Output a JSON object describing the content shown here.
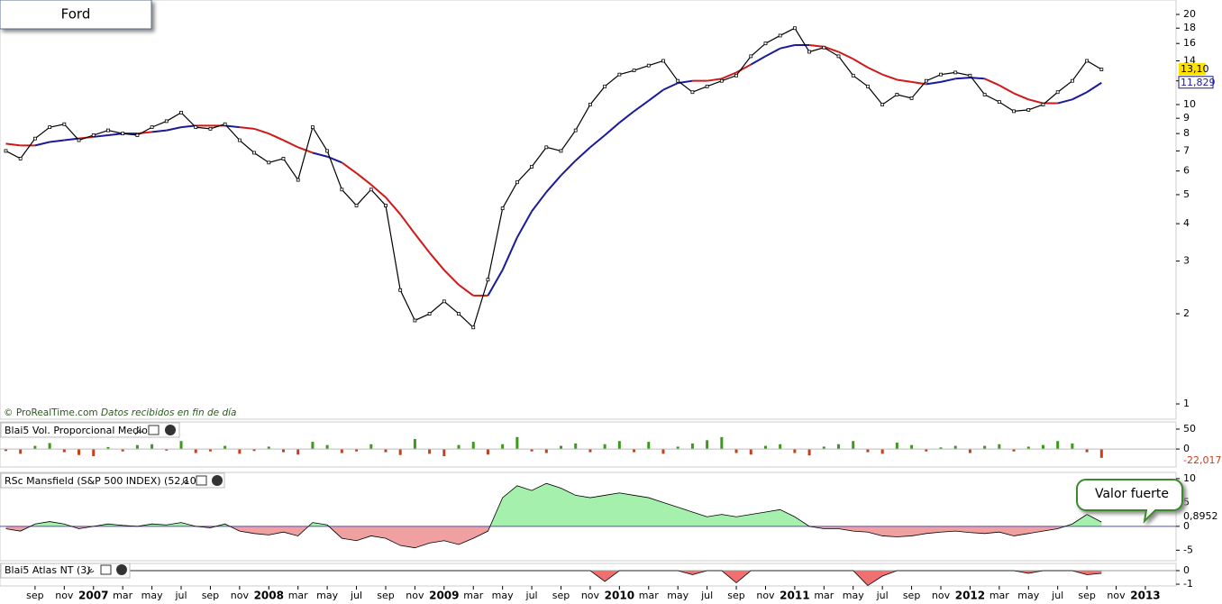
{
  "chart_data": [
    {
      "type": "line",
      "title": "Ford",
      "source": "© ProRealTime.com",
      "source_note": "Datos recibidos en fin de día",
      "x": [
        -6,
        -5,
        -4,
        -3,
        -2,
        -1,
        0,
        1,
        2,
        3,
        4,
        5,
        6,
        7,
        8,
        9,
        10,
        11,
        12,
        13,
        14,
        15,
        16,
        17,
        18,
        19,
        20,
        21,
        22,
        23,
        24,
        25,
        26,
        27,
        28,
        29,
        30,
        31,
        32,
        33,
        34,
        35,
        36,
        37,
        38,
        39,
        40,
        41,
        42,
        43,
        44,
        45,
        46,
        47,
        48,
        49,
        50,
        51,
        52,
        53,
        54,
        55,
        56,
        57,
        58,
        59,
        60,
        61,
        62,
        63,
        64,
        65,
        66,
        67,
        68,
        69
      ],
      "xlim": [
        -6.4,
        74.1
      ],
      "xticks": [
        {
          "value": -4,
          "label": "sep"
        },
        {
          "value": -2,
          "label": "nov"
        },
        {
          "value": 0,
          "label": "2007"
        },
        {
          "value": 2,
          "label": "mar"
        },
        {
          "value": 4,
          "label": "may"
        },
        {
          "value": 6,
          "label": "jul"
        },
        {
          "value": 8,
          "label": "sep"
        },
        {
          "value": 10,
          "label": "nov"
        },
        {
          "value": 12,
          "label": "2008"
        },
        {
          "value": 14,
          "label": "mar"
        },
        {
          "value": 16,
          "label": "may"
        },
        {
          "value": 18,
          "label": "jul"
        },
        {
          "value": 20,
          "label": "sep"
        },
        {
          "value": 22,
          "label": "nov"
        },
        {
          "value": 24,
          "label": "2009"
        },
        {
          "value": 26,
          "label": "mar"
        },
        {
          "value": 28,
          "label": "may"
        },
        {
          "value": 30,
          "label": "jul"
        },
        {
          "value": 32,
          "label": "sep"
        },
        {
          "value": 34,
          "label": "nov"
        },
        {
          "value": 36,
          "label": "2010"
        },
        {
          "value": 38,
          "label": "mar"
        },
        {
          "value": 40,
          "label": "may"
        },
        {
          "value": 42,
          "label": "jul"
        },
        {
          "value": 44,
          "label": "sep"
        },
        {
          "value": 46,
          "label": "nov"
        },
        {
          "value": 48,
          "label": "2011"
        },
        {
          "value": 50,
          "label": "mar"
        },
        {
          "value": 52,
          "label": "may"
        },
        {
          "value": 54,
          "label": "jul"
        },
        {
          "value": 56,
          "label": "sep"
        },
        {
          "value": 58,
          "label": "nov"
        },
        {
          "value": 60,
          "label": "2012"
        },
        {
          "value": 62,
          "label": "mar"
        },
        {
          "value": 64,
          "label": "may"
        },
        {
          "value": 66,
          "label": "jul"
        },
        {
          "value": 68,
          "label": "sep"
        },
        {
          "value": 70,
          "label": "nov"
        },
        {
          "value": 72,
          "label": "2013"
        }
      ],
      "ylim": [
        0.889,
        22.35
      ],
      "log": true,
      "yticks": [
        1,
        2,
        3,
        4,
        5,
        6,
        7,
        8,
        9,
        10,
        12,
        14,
        16,
        18,
        20
      ],
      "series": [
        {
          "color": "#000000",
          "last_value_label": "13,10",
          "label_color": "#ffe100",
          "values": [
            7.0,
            6.6,
            7.7,
            8.4,
            8.6,
            7.6,
            7.9,
            8.2,
            8.0,
            7.9,
            8.4,
            8.8,
            9.4,
            8.4,
            8.3,
            8.6,
            7.6,
            6.9,
            6.4,
            6.6,
            5.6,
            8.4,
            7.0,
            5.2,
            4.6,
            5.2,
            4.6,
            2.4,
            1.9,
            2.0,
            2.2,
            2.0,
            1.8,
            2.6,
            4.5,
            5.5,
            6.2,
            7.2,
            7.0,
            8.2,
            10.0,
            11.5,
            12.6,
            13.0,
            13.5,
            14.0,
            12.0,
            11.0,
            11.5,
            12.0,
            12.5,
            14.5,
            16.0,
            17.0,
            18.0,
            15.0,
            15.5,
            14.5,
            12.5,
            11.5,
            10.0,
            10.8,
            10.5,
            12.0,
            12.6,
            12.8,
            12.5,
            10.8,
            10.2,
            9.5,
            9.6,
            10.0,
            11.0,
            12.0,
            14.0,
            13.1
          ]
        },
        {
          "color": "#1a1a9a",
          "color_below": "#d01818",
          "last_value_label": "11,829",
          "values": [
            7.4,
            7.3,
            7.3,
            7.5,
            7.6,
            7.7,
            7.8,
            7.9,
            8.0,
            8.0,
            8.1,
            8.2,
            8.4,
            8.5,
            8.5,
            8.5,
            8.4,
            8.3,
            8.0,
            7.6,
            7.2,
            6.9,
            6.7,
            6.4,
            5.9,
            5.4,
            4.9,
            4.3,
            3.7,
            3.2,
            2.8,
            2.5,
            2.3,
            2.3,
            2.8,
            3.6,
            4.4,
            5.1,
            5.8,
            6.5,
            7.2,
            7.9,
            8.7,
            9.5,
            10.3,
            11.2,
            11.8,
            12.0,
            12.0,
            12.2,
            12.8,
            13.6,
            14.5,
            15.4,
            15.8,
            15.8,
            15.6,
            15.0,
            14.2,
            13.3,
            12.6,
            12.1,
            11.9,
            11.7,
            11.9,
            12.2,
            12.3,
            12.2,
            11.6,
            10.9,
            10.4,
            10.1,
            10.1,
            10.4,
            11.0,
            11.829
          ]
        }
      ]
    },
    {
      "type": "bar",
      "title": "Blai5 Vol. Proporcional Medio",
      "color": "#3a9a1a",
      "color_negative": "#c8401a",
      "ylim": [
        -45,
        68
      ],
      "yticks": [
        0,
        50
      ],
      "last_value_label": "-22,017",
      "values": [
        -5,
        -12,
        8,
        15,
        -8,
        -15,
        -18,
        5,
        -6,
        10,
        12,
        -4,
        20,
        -10,
        -6,
        8,
        -12,
        -5,
        6,
        -8,
        -14,
        18,
        10,
        -10,
        -6,
        12,
        -8,
        -15,
        25,
        -12,
        -18,
        10,
        18,
        -14,
        12,
        30,
        -6,
        -10,
        8,
        14,
        -8,
        12,
        20,
        -8,
        18,
        -12,
        6,
        14,
        22,
        30,
        -10,
        -14,
        8,
        12,
        -10,
        -16,
        6,
        12,
        20,
        -8,
        -12,
        16,
        10,
        -6,
        4,
        8,
        -10,
        8,
        12,
        -6,
        6,
        10,
        20,
        14,
        -8,
        -22.017
      ]
    },
    {
      "type": "area",
      "title": "RSc Mansfield (S&P 500 INDEX) (52 10)",
      "color": "#a6f0ad",
      "color_negative": "#f0a0a0",
      "baseline_color": "#5050c8",
      "ylim": [
        -7.2,
        11.3
      ],
      "yticks": [
        -5,
        0,
        5,
        10
      ],
      "last_value_label": "0,8952",
      "annotation": "Valor fuerte",
      "values": [
        -0.5,
        -1.0,
        0.5,
        1.0,
        0.5,
        -0.5,
        0.0,
        0.5,
        0.2,
        0.0,
        0.5,
        0.3,
        0.8,
        0.0,
        -0.3,
        0.5,
        -1.0,
        -1.5,
        -1.8,
        -1.2,
        -2.0,
        0.8,
        0.3,
        -2.5,
        -3.0,
        -2.0,
        -2.5,
        -4.0,
        -4.5,
        -3.5,
        -3.0,
        -3.8,
        -2.5,
        -1.0,
        6.0,
        8.5,
        7.5,
        9.0,
        8.0,
        6.5,
        6.0,
        6.5,
        7.0,
        6.5,
        6.0,
        5.0,
        4.0,
        3.0,
        2.0,
        2.5,
        2.0,
        2.5,
        3.0,
        3.5,
        2.0,
        0.0,
        -0.5,
        -0.5,
        -1.0,
        -1.2,
        -2.0,
        -2.2,
        -2.0,
        -1.5,
        -1.2,
        -1.0,
        -1.3,
        -1.5,
        -1.2,
        -2.0,
        -1.5,
        -1.0,
        -0.5,
        0.5,
        2.5,
        0.8952
      ]
    },
    {
      "type": "area",
      "title": "Blai5 Atlas NT (3)",
      "color": "#a6f0ad",
      "color_negative": "#f07070",
      "baseline_color": "#999999",
      "ylim": [
        -1.13,
        0.53
      ],
      "yticks": [
        -1,
        0
      ],
      "values": [
        0,
        0,
        0,
        0,
        0,
        0,
        0,
        0,
        0,
        0,
        0,
        0,
        0,
        0,
        0,
        0,
        0,
        0,
        0,
        0,
        0,
        0,
        0,
        0,
        0,
        0,
        0,
        0,
        0,
        0,
        0,
        0,
        0,
        0,
        0,
        0,
        0,
        0,
        0,
        0,
        0,
        -0.8,
        0,
        0,
        0,
        0,
        0,
        -0.3,
        0,
        0,
        -0.9,
        0,
        0,
        0,
        0,
        0,
        0,
        0,
        0,
        -1.1,
        -0.4,
        0,
        0,
        0,
        0,
        0,
        0,
        0,
        0,
        0,
        -0.2,
        0,
        0,
        0,
        -0.3,
        -0.2
      ]
    }
  ]
}
